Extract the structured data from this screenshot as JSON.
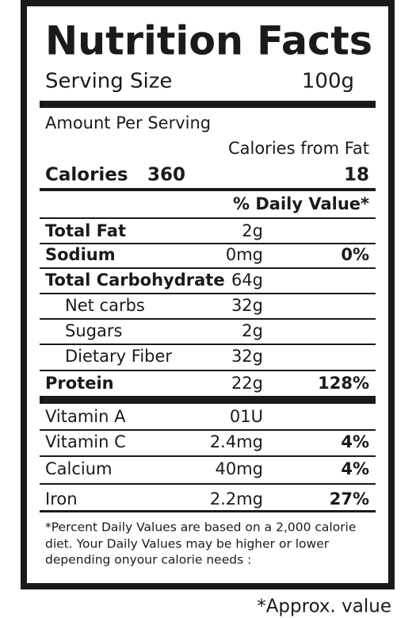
{
  "title": "Nutrition Facts",
  "serving": {
    "label": "Serving Size",
    "value": "100g"
  },
  "amount_per_serving": "Amount Per Serving",
  "calories_from_fat_label": "Calories from Fat",
  "calories": {
    "label": "Calories",
    "value": "360",
    "from_fat": "18"
  },
  "daily_value_header": "% Daily Value*",
  "nutrients": [
    {
      "label": "Total Fat",
      "amount": "2g",
      "bold": true
    },
    {
      "label": "Sodium",
      "amount": "0mg",
      "percent": "0%",
      "bold": true
    },
    {
      "label": "Total Carbohydrate",
      "amount": "64g",
      "bold": true
    },
    {
      "label": "Net carbs",
      "amount": "32g",
      "indent": true
    },
    {
      "label": "Sugars",
      "amount": "2g",
      "indent": true
    },
    {
      "label": "Dietary Fiber",
      "amount": "32g",
      "indent": true
    },
    {
      "label": "Protein",
      "amount": "22g",
      "percent": "128%",
      "bold": true
    }
  ],
  "vitamins": [
    {
      "label": "Vitamin A",
      "amount": "01U"
    },
    {
      "label": "Vitamin C",
      "amount": "2.4mg",
      "percent": "4%"
    },
    {
      "label": "Calcium",
      "amount": "40mg",
      "percent": "4%"
    },
    {
      "label": "Iron",
      "amount": "2.2mg",
      "percent": "27%"
    }
  ],
  "footnote": [
    "*Percent Daily Values are based on a 2,000 calorie",
    "diet. Your Daily Values may be higher or lower",
    "depending onyour calorie needs :"
  ],
  "approx_note": "*Approx. value"
}
